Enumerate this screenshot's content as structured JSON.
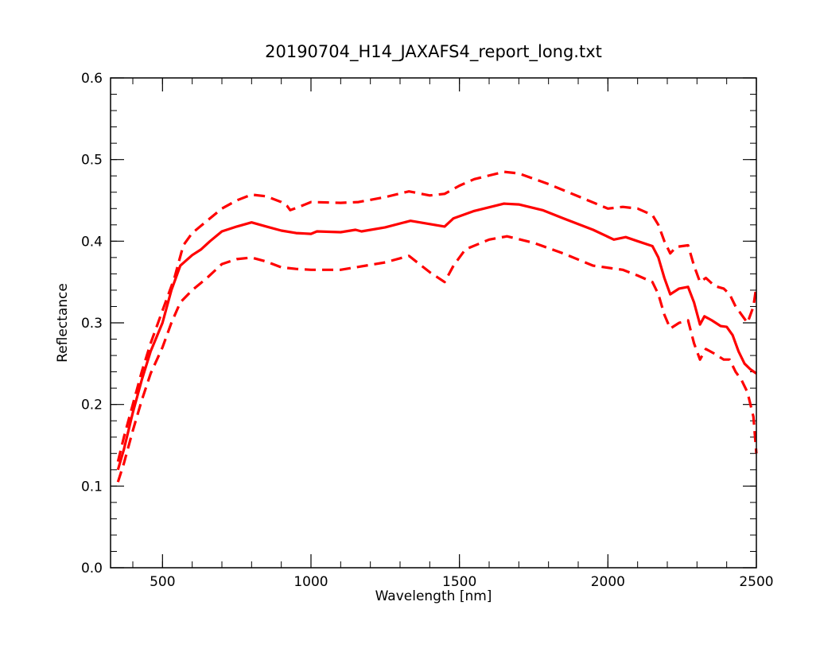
{
  "chart_data": {
    "type": "line",
    "title": "20190704_H14_JAXAFS4_report_long.txt",
    "xlabel": "Wavelength [nm]",
    "ylabel": "Reflectance",
    "xlim": [
      325,
      2500
    ],
    "ylim": [
      0.0,
      0.6
    ],
    "x_ticks": [
      {
        "value": 500,
        "label": "500"
      },
      {
        "value": 1000,
        "label": "1000"
      },
      {
        "value": 1500,
        "label": "1500"
      },
      {
        "value": 2000,
        "label": "2000"
      },
      {
        "value": 2500,
        "label": "2500"
      }
    ],
    "x_minor_step": 100,
    "y_ticks": [
      {
        "value": 0.0,
        "label": "0.0"
      },
      {
        "value": 0.1,
        "label": "0.1"
      },
      {
        "value": 0.2,
        "label": "0.2"
      },
      {
        "value": 0.3,
        "label": "0.3"
      },
      {
        "value": 0.4,
        "label": "0.4"
      },
      {
        "value": 0.5,
        "label": "0.5"
      },
      {
        "value": 0.6,
        "label": "0.6"
      }
    ],
    "y_minor_step": 0.02,
    "grid": false,
    "color": "#ff0000",
    "series": [
      {
        "style": "solid",
        "points": [
          [
            350,
            0.12
          ],
          [
            370,
            0.145
          ],
          [
            400,
            0.19
          ],
          [
            430,
            0.23
          ],
          [
            460,
            0.265
          ],
          [
            500,
            0.3
          ],
          [
            530,
            0.34
          ],
          [
            560,
            0.37
          ],
          [
            600,
            0.383
          ],
          [
            630,
            0.39
          ],
          [
            660,
            0.4
          ],
          [
            700,
            0.412
          ],
          [
            750,
            0.418
          ],
          [
            800,
            0.423
          ],
          [
            850,
            0.418
          ],
          [
            900,
            0.413
          ],
          [
            950,
            0.41
          ],
          [
            1000,
            0.409
          ],
          [
            1020,
            0.412
          ],
          [
            1100,
            0.411
          ],
          [
            1150,
            0.414
          ],
          [
            1170,
            0.412
          ],
          [
            1250,
            0.417
          ],
          [
            1335,
            0.425
          ],
          [
            1450,
            0.418
          ],
          [
            1480,
            0.428
          ],
          [
            1550,
            0.437
          ],
          [
            1650,
            0.446
          ],
          [
            1700,
            0.445
          ],
          [
            1780,
            0.438
          ],
          [
            1850,
            0.428
          ],
          [
            1950,
            0.414
          ],
          [
            2020,
            0.402
          ],
          [
            2060,
            0.405
          ],
          [
            2100,
            0.4
          ],
          [
            2150,
            0.394
          ],
          [
            2170,
            0.38
          ],
          [
            2190,
            0.355
          ],
          [
            2210,
            0.335
          ],
          [
            2240,
            0.342
          ],
          [
            2270,
            0.344
          ],
          [
            2290,
            0.325
          ],
          [
            2310,
            0.298
          ],
          [
            2325,
            0.308
          ],
          [
            2350,
            0.303
          ],
          [
            2380,
            0.296
          ],
          [
            2400,
            0.295
          ],
          [
            2420,
            0.285
          ],
          [
            2440,
            0.265
          ],
          [
            2460,
            0.25
          ],
          [
            2480,
            0.243
          ],
          [
            2500,
            0.238
          ]
        ]
      },
      {
        "style": "dashed",
        "points": [
          [
            350,
            0.13
          ],
          [
            370,
            0.16
          ],
          [
            400,
            0.2
          ],
          [
            430,
            0.24
          ],
          [
            460,
            0.275
          ],
          [
            500,
            0.315
          ],
          [
            540,
            0.355
          ],
          [
            570,
            0.395
          ],
          [
            600,
            0.41
          ],
          [
            650,
            0.425
          ],
          [
            700,
            0.44
          ],
          [
            750,
            0.45
          ],
          [
            800,
            0.457
          ],
          [
            850,
            0.455
          ],
          [
            900,
            0.448
          ],
          [
            920,
            0.443
          ],
          [
            930,
            0.438
          ],
          [
            960,
            0.442
          ],
          [
            1000,
            0.448
          ],
          [
            1100,
            0.447
          ],
          [
            1160,
            0.448
          ],
          [
            1250,
            0.454
          ],
          [
            1330,
            0.461
          ],
          [
            1400,
            0.456
          ],
          [
            1450,
            0.458
          ],
          [
            1500,
            0.468
          ],
          [
            1550,
            0.476
          ],
          [
            1650,
            0.485
          ],
          [
            1700,
            0.483
          ],
          [
            1800,
            0.47
          ],
          [
            1900,
            0.455
          ],
          [
            2000,
            0.44
          ],
          [
            2050,
            0.442
          ],
          [
            2100,
            0.44
          ],
          [
            2150,
            0.432
          ],
          [
            2170,
            0.42
          ],
          [
            2190,
            0.4
          ],
          [
            2210,
            0.385
          ],
          [
            2230,
            0.393
          ],
          [
            2270,
            0.395
          ],
          [
            2290,
            0.37
          ],
          [
            2310,
            0.35
          ],
          [
            2330,
            0.355
          ],
          [
            2360,
            0.345
          ],
          [
            2390,
            0.342
          ],
          [
            2410,
            0.335
          ],
          [
            2430,
            0.32
          ],
          [
            2450,
            0.31
          ],
          [
            2470,
            0.3
          ],
          [
            2490,
            0.32
          ],
          [
            2500,
            0.345
          ]
        ]
      },
      {
        "style": "dashed",
        "points": [
          [
            350,
            0.105
          ],
          [
            370,
            0.128
          ],
          [
            400,
            0.168
          ],
          [
            430,
            0.205
          ],
          [
            460,
            0.238
          ],
          [
            500,
            0.27
          ],
          [
            530,
            0.3
          ],
          [
            560,
            0.325
          ],
          [
            600,
            0.34
          ],
          [
            650,
            0.355
          ],
          [
            700,
            0.372
          ],
          [
            750,
            0.378
          ],
          [
            800,
            0.38
          ],
          [
            850,
            0.375
          ],
          [
            900,
            0.368
          ],
          [
            950,
            0.366
          ],
          [
            1000,
            0.365
          ],
          [
            1100,
            0.365
          ],
          [
            1150,
            0.368
          ],
          [
            1250,
            0.374
          ],
          [
            1330,
            0.382
          ],
          [
            1400,
            0.362
          ],
          [
            1450,
            0.35
          ],
          [
            1480,
            0.37
          ],
          [
            1520,
            0.39
          ],
          [
            1600,
            0.402
          ],
          [
            1660,
            0.406
          ],
          [
            1750,
            0.398
          ],
          [
            1850,
            0.385
          ],
          [
            1950,
            0.37
          ],
          [
            2050,
            0.365
          ],
          [
            2100,
            0.358
          ],
          [
            2150,
            0.35
          ],
          [
            2170,
            0.335
          ],
          [
            2190,
            0.31
          ],
          [
            2210,
            0.293
          ],
          [
            2240,
            0.3
          ],
          [
            2270,
            0.303
          ],
          [
            2290,
            0.275
          ],
          [
            2310,
            0.255
          ],
          [
            2330,
            0.268
          ],
          [
            2360,
            0.262
          ],
          [
            2390,
            0.255
          ],
          [
            2410,
            0.255
          ],
          [
            2430,
            0.24
          ],
          [
            2450,
            0.23
          ],
          [
            2470,
            0.215
          ],
          [
            2490,
            0.185
          ],
          [
            2500,
            0.14
          ]
        ]
      }
    ]
  }
}
